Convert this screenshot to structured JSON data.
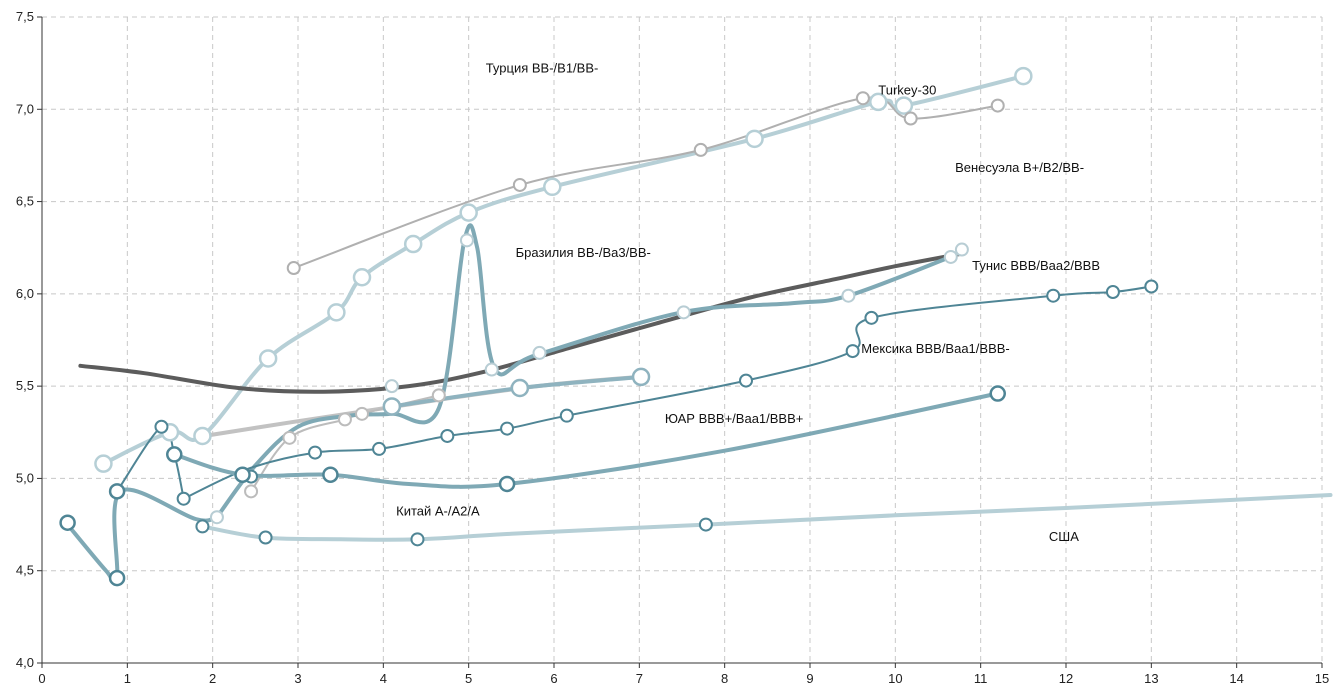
{
  "chart_data": {
    "type": "line",
    "title": "",
    "xlabel": "",
    "ylabel": "",
    "xlim": [
      0,
      15
    ],
    "ylim": [
      4.0,
      7.5
    ],
    "x_ticks": [
      0,
      1,
      2,
      3,
      4,
      5,
      6,
      7,
      8,
      9,
      10,
      11,
      12,
      13,
      14,
      15
    ],
    "x_tick_labels": [
      "0",
      "1",
      "2",
      "3",
      "4",
      "5",
      "6",
      "7",
      "8",
      "9",
      "10",
      "11",
      "12",
      "13",
      "14",
      "15"
    ],
    "y_ticks": [
      4.0,
      4.5,
      5.0,
      5.5,
      6.0,
      6.5,
      7.0,
      7.5
    ],
    "y_tick_labels": [
      "4,0",
      "4,5",
      "5,0",
      "5,5",
      "6,0",
      "6,5",
      "7,0",
      "7,5"
    ],
    "grid": true,
    "annotations": [
      {
        "text": "Турция BB-/B1/BB-",
        "x": 5.2,
        "y": 7.2
      },
      {
        "text": "Turkey-30",
        "x": 9.8,
        "y": 7.08
      },
      {
        "text": "Венесуэла B+/B2/BB-",
        "x": 10.7,
        "y": 6.66
      },
      {
        "text": "Бразилия BB-/Ba3/BB-",
        "x": 5.55,
        "y": 6.2
      },
      {
        "text": "Тунис BBB/Baa2/BBB",
        "x": 10.9,
        "y": 6.13
      },
      {
        "text": "Мексика BBB/Baa1/BBB-",
        "x": 9.6,
        "y": 5.68
      },
      {
        "text": "ЮАР BBB+/Baa1/BBB+",
        "x": 7.3,
        "y": 5.3
      },
      {
        "text": "Китай A-/A2/A",
        "x": 4.15,
        "y": 4.8
      },
      {
        "text": "США",
        "x": 11.8,
        "y": 4.66
      }
    ],
    "series": [
      {
        "color": "#b6cfd6",
        "width": 4,
        "marker_r": 8,
        "marker_color": "#b6cfd6",
        "points": [
          [
            0.72,
            5.08
          ],
          [
            1.5,
            5.25
          ],
          [
            1.88,
            5.23
          ],
          [
            2.65,
            5.65
          ],
          [
            3.45,
            5.9
          ],
          [
            3.75,
            6.09
          ],
          [
            4.35,
            6.27
          ],
          [
            5.0,
            6.44
          ],
          [
            5.98,
            6.58
          ],
          [
            8.35,
            6.84
          ],
          [
            9.8,
            7.04
          ],
          [
            10.1,
            7.02
          ],
          [
            11.5,
            7.18
          ]
        ],
        "markers": [
          [
            0.72,
            5.08
          ],
          [
            1.5,
            5.25
          ],
          [
            1.88,
            5.23
          ],
          [
            2.65,
            5.65
          ],
          [
            3.45,
            5.9
          ],
          [
            3.75,
            6.09
          ],
          [
            4.35,
            6.27
          ],
          [
            5.0,
            6.44
          ],
          [
            5.98,
            6.58
          ],
          [
            8.35,
            6.84
          ],
          [
            9.8,
            7.04
          ],
          [
            10.1,
            7.02
          ],
          [
            11.5,
            7.18
          ]
        ]
      },
      {
        "color": "#b0b0b0",
        "width": 2,
        "marker_r": 6,
        "marker_color": "#b0b0b0",
        "points": [
          [
            2.95,
            6.14
          ],
          [
            5.6,
            6.59
          ],
          [
            7.72,
            6.78
          ],
          [
            9.62,
            7.06
          ],
          [
            10.18,
            6.95
          ],
          [
            11.2,
            7.02
          ]
        ],
        "markers": [
          [
            2.95,
            6.14
          ],
          [
            5.6,
            6.59
          ],
          [
            7.72,
            6.78
          ],
          [
            9.62,
            7.06
          ],
          [
            10.18,
            6.95
          ],
          [
            11.2,
            7.02
          ]
        ]
      },
      {
        "color": "#5c5c5c",
        "width": 4,
        "marker_r": 0,
        "marker_color": "#5c5c5c",
        "points": [
          [
            0.45,
            5.61
          ],
          [
            1.2,
            5.57
          ],
          [
            2.3,
            5.49
          ],
          [
            3.3,
            5.47
          ],
          [
            4.3,
            5.5
          ],
          [
            5.2,
            5.58
          ],
          [
            6.2,
            5.71
          ],
          [
            7.2,
            5.84
          ],
          [
            8.3,
            5.98
          ],
          [
            9.3,
            6.08
          ],
          [
            10.0,
            6.15
          ],
          [
            10.8,
            6.22
          ]
        ],
        "markers": [
          [
            0.45,
            5.61
          ],
          [
            10.8,
            6.22
          ]
        ]
      },
      {
        "color": "#c2c2c2",
        "width": 4,
        "marker_r": 0,
        "marker_color": "#c2c2c2",
        "points": [
          [
            1.9,
            5.23
          ],
          [
            3.0,
            5.31
          ],
          [
            4.0,
            5.38
          ],
          [
            5.0,
            5.45
          ],
          [
            6.0,
            5.51
          ],
          [
            7.0,
            5.55
          ]
        ],
        "markers": []
      },
      {
        "color": "#bcbcbc",
        "width": 2,
        "marker_r": 6,
        "marker_color": "#bcbcbc",
        "points": [
          [
            2.45,
            4.93
          ],
          [
            2.9,
            5.22
          ],
          [
            3.55,
            5.32
          ],
          [
            3.75,
            5.35
          ],
          [
            4.65,
            5.45
          ]
        ],
        "markers": [
          [
            2.45,
            4.93
          ],
          [
            2.9,
            5.22
          ],
          [
            3.55,
            5.32
          ],
          [
            3.75,
            5.35
          ],
          [
            4.65,
            5.45
          ]
        ]
      },
      {
        "color": "#8fb3bf",
        "width": 4,
        "marker_r": 8,
        "marker_color": "#8fb3bf",
        "points": [
          [
            4.1,
            5.39
          ],
          [
            5.6,
            5.49
          ],
          [
            7.02,
            5.55
          ]
        ],
        "markers": [
          [
            4.1,
            5.39
          ],
          [
            5.6,
            5.49
          ],
          [
            7.02,
            5.55
          ]
        ]
      },
      {
        "color": "#7fa9b5",
        "width": 4,
        "marker_r": 6,
        "marker_color": "#b8cdd4",
        "points": [
          [
            2.05,
            4.79
          ],
          [
            2.5,
            5.07
          ],
          [
            3.0,
            5.28
          ],
          [
            3.6,
            5.34
          ],
          [
            4.1,
            5.35
          ],
          [
            4.65,
            5.38
          ],
          [
            4.95,
            6.29
          ],
          [
            5.1,
            6.25
          ],
          [
            5.3,
            5.6
          ],
          [
            5.8,
            5.67
          ],
          [
            7.5,
            5.9
          ],
          [
            8.8,
            5.95
          ],
          [
            9.45,
            5.99
          ],
          [
            10.7,
            6.21
          ]
        ],
        "markers": [
          [
            2.05,
            4.79
          ],
          [
            4.1,
            5.5
          ],
          [
            4.98,
            6.29
          ],
          [
            5.27,
            5.59
          ],
          [
            5.83,
            5.68
          ],
          [
            7.52,
            5.9
          ],
          [
            9.45,
            5.99
          ],
          [
            10.65,
            6.2
          ],
          [
            10.78,
            6.24
          ]
        ]
      },
      {
        "color": "#4f8595",
        "width": 2,
        "marker_r": 6,
        "marker_color": "#4f8595",
        "points": [
          [
            1.66,
            4.89
          ],
          [
            2.4,
            5.05
          ],
          [
            3.2,
            5.14
          ],
          [
            3.95,
            5.16
          ],
          [
            4.75,
            5.23
          ],
          [
            5.45,
            5.27
          ],
          [
            6.15,
            5.34
          ],
          [
            8.25,
            5.53
          ],
          [
            9.5,
            5.69
          ],
          [
            9.72,
            5.87
          ],
          [
            11.85,
            5.99
          ],
          [
            12.55,
            6.01
          ],
          [
            13.0,
            6.04
          ]
        ],
        "markers": [
          [
            1.66,
            4.89
          ],
          [
            2.45,
            5.01
          ],
          [
            3.2,
            5.14
          ],
          [
            3.95,
            5.16
          ],
          [
            4.75,
            5.23
          ],
          [
            5.45,
            5.27
          ],
          [
            6.15,
            5.34
          ],
          [
            8.25,
            5.53
          ],
          [
            9.5,
            5.69
          ],
          [
            9.72,
            5.87
          ],
          [
            11.85,
            5.99
          ],
          [
            12.55,
            6.01
          ],
          [
            13.0,
            6.04
          ]
        ]
      },
      {
        "color": "#4f8595",
        "width": 2,
        "marker_r": 6,
        "marker_color": "#4f8595",
        "points": [
          [
            0.88,
            4.93
          ],
          [
            1.4,
            5.28
          ],
          [
            1.55,
            5.13
          ],
          [
            1.66,
            4.89
          ]
        ],
        "markers": [
          [
            1.4,
            5.28
          ]
        ]
      },
      {
        "color": "#7fa9b5",
        "width": 4,
        "marker_r": 7,
        "marker_color": "#4f8595",
        "points": [
          [
            1.55,
            5.13
          ],
          [
            2.35,
            5.02
          ],
          [
            3.38,
            5.02
          ],
          [
            4.3,
            4.97
          ],
          [
            5.45,
            4.97
          ],
          [
            8.0,
            5.15
          ],
          [
            11.2,
            5.46
          ]
        ],
        "markers": [
          [
            1.55,
            5.13
          ],
          [
            2.35,
            5.02
          ],
          [
            3.38,
            5.02
          ],
          [
            5.45,
            4.97
          ],
          [
            11.2,
            5.46
          ]
        ]
      },
      {
        "color": "#7fa9b5",
        "width": 4,
        "marker_r": 7,
        "marker_color": "#4f8595",
        "points": [
          [
            0.3,
            4.75
          ],
          [
            0.75,
            4.5
          ],
          [
            0.88,
            4.46
          ],
          [
            0.92,
            4.93
          ],
          [
            1.8,
            4.78
          ],
          [
            2.05,
            4.79
          ]
        ],
        "markers": [
          [
            0.3,
            4.76
          ],
          [
            0.88,
            4.46
          ],
          [
            0.88,
            4.93
          ]
        ]
      },
      {
        "color": "#b6cfd6",
        "width": 4,
        "marker_r": 6,
        "marker_color": "#4f8595",
        "points": [
          [
            1.88,
            4.74
          ],
          [
            2.6,
            4.68
          ],
          [
            3.5,
            4.67
          ],
          [
            4.4,
            4.67
          ],
          [
            5.5,
            4.7
          ],
          [
            7.78,
            4.75
          ],
          [
            10.0,
            4.8
          ],
          [
            12.0,
            4.84
          ],
          [
            15.1,
            4.91
          ]
        ],
        "markers": [
          [
            1.88,
            4.74
          ],
          [
            2.62,
            4.68
          ],
          [
            4.4,
            4.67
          ],
          [
            7.78,
            4.75
          ]
        ]
      }
    ]
  }
}
